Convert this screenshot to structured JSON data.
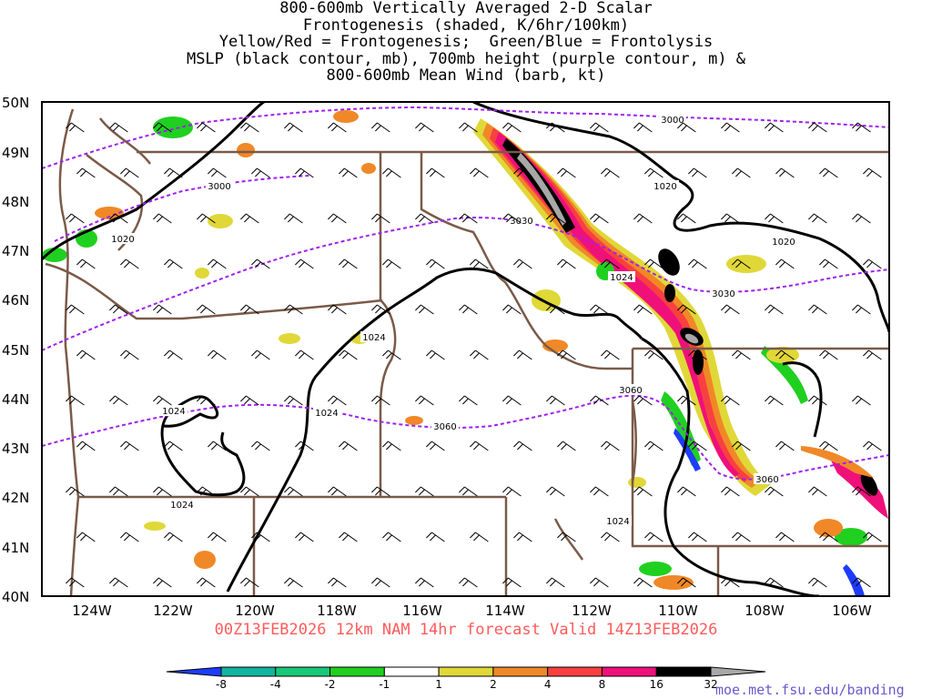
{
  "title_lines": [
    "800-600mb Vertically Averaged 2-D Scalar",
    "Frontogenesis (shaded, K/6hr/100km)",
    "Yellow/Red = Frontogenesis;  Green/Blue = Frontolysis",
    "MSLP (black contour, mb), 700mb height (purple contour, m) &",
    "800-600mb Mean Wind (barb, kt)"
  ],
  "lat_labels": [
    "50N",
    "49N",
    "48N",
    "47N",
    "46N",
    "45N",
    "44N",
    "43N",
    "42N",
    "41N",
    "40N"
  ],
  "lon_labels": [
    "124W",
    "122W",
    "120W",
    "118W",
    "116W",
    "114W",
    "112W",
    "110W",
    "108W",
    "106W"
  ],
  "contour_labels": {
    "mslp": [
      "1020",
      "1020",
      "1020",
      "1024",
      "1024",
      "1024",
      "1024",
      "1024",
      "1024"
    ],
    "height": [
      "3000",
      "3000",
      "3030",
      "3030",
      "3060",
      "3060",
      "3060"
    ]
  },
  "valid_line": "00Z13FEB2026 12km NAM 14hr forecast Valid 14Z13FEB2026",
  "colorbar": {
    "labels": [
      "-8",
      "-4",
      "-2",
      "-1",
      "1",
      "2",
      "4",
      "8",
      "16",
      "32"
    ],
    "colors": [
      "#1e3cff",
      "#10b4a0",
      "#18c878",
      "#20d020",
      "#ffffff",
      "#e0d838",
      "#f08828",
      "#f84040",
      "#f0107a",
      "#000000",
      "#a8a8a8"
    ]
  },
  "colors": {
    "state_lines": "#7a5a48",
    "mslp": "#000000",
    "height": "#a020f0",
    "valid_text": "#ff5a5a",
    "credit": "#6a5acd"
  },
  "credit": "moe.met.fsu.edu/banding"
}
